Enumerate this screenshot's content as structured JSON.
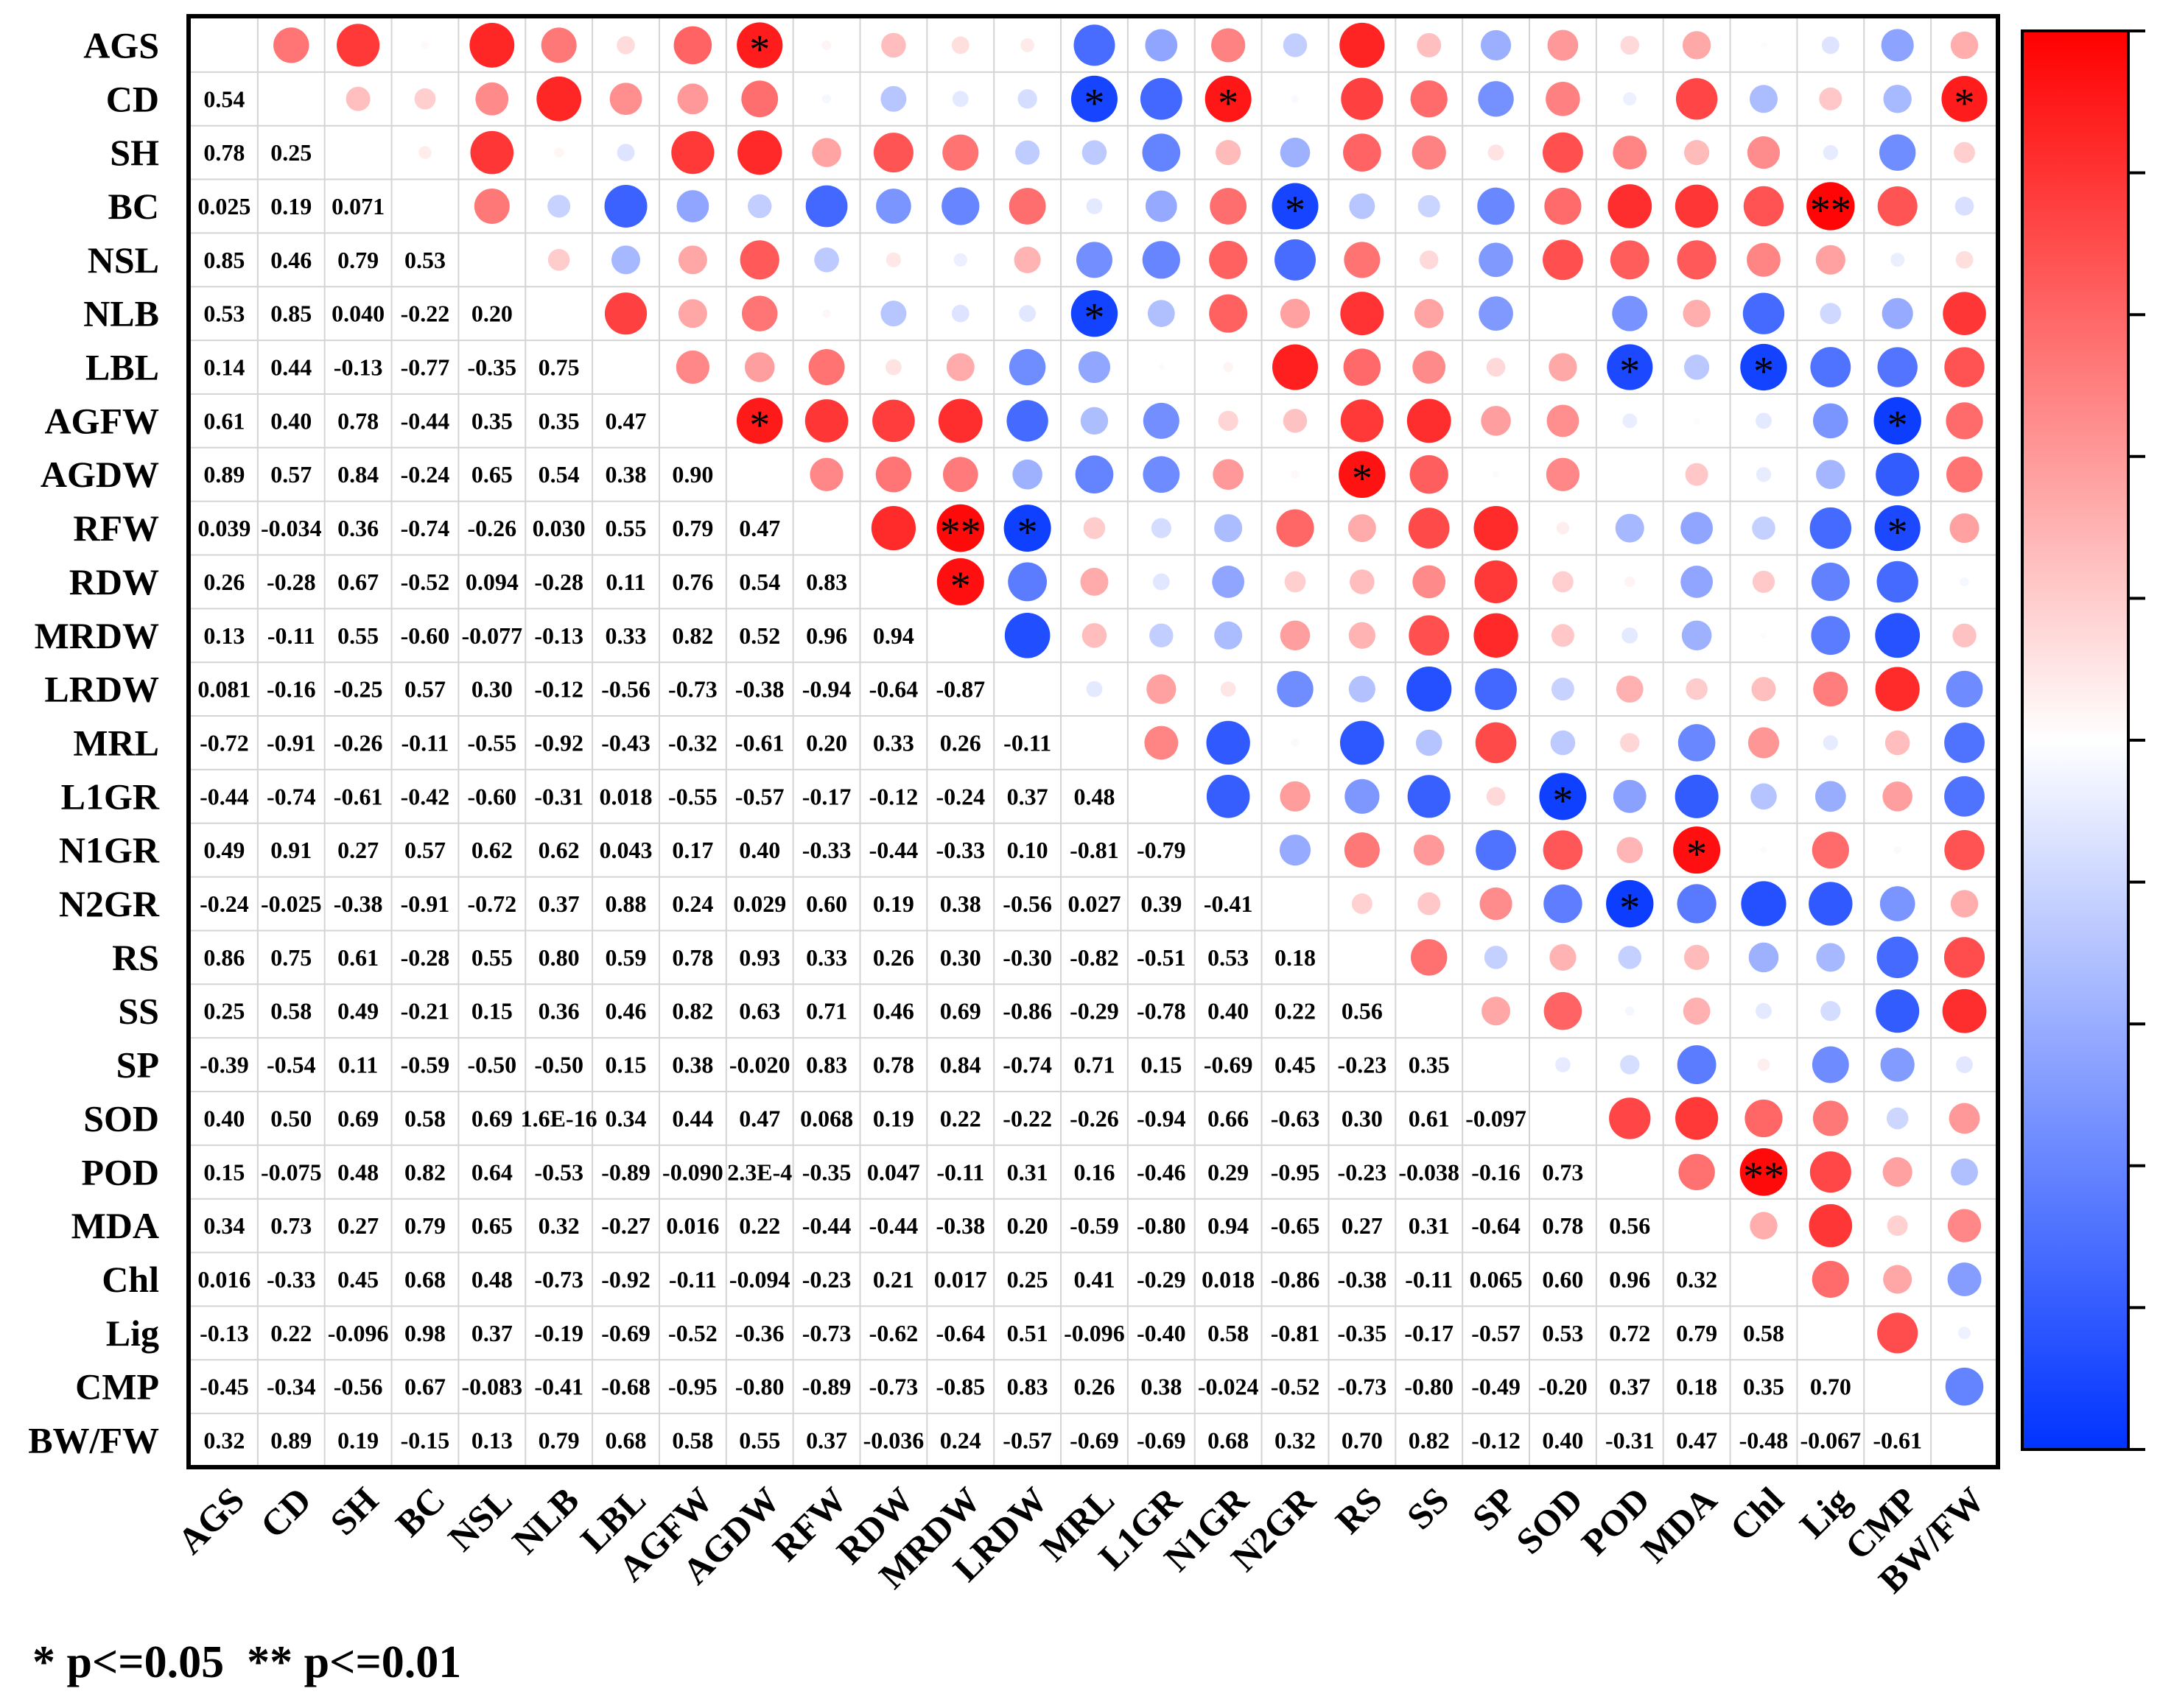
{
  "chart_data": {
    "type": "heatmap",
    "subtype": "correlation-matrix",
    "labels": [
      "AGS",
      "CD",
      "SH",
      "BC",
      "NSL",
      "NLB",
      "LBL",
      "AGFW",
      "AGDW",
      "RFW",
      "RDW",
      "MRDW",
      "LRDW",
      "MRL",
      "L1GR",
      "N1GR",
      "N2GR",
      "RS",
      "SS",
      "SP",
      "SOD",
      "POD",
      "MDA",
      "Chl",
      "Lig",
      "CMP",
      "BW/FW"
    ],
    "lower_values_text": [
      [],
      [
        "0.54"
      ],
      [
        "0.78",
        "0.25"
      ],
      [
        "0.025",
        "0.19",
        "0.071"
      ],
      [
        "0.85",
        "0.46",
        "0.79",
        "0.53"
      ],
      [
        "0.53",
        "0.85",
        "0.040",
        "-0.22",
        "0.20"
      ],
      [
        "0.14",
        "0.44",
        "-0.13",
        "-0.77",
        "-0.35",
        "0.75"
      ],
      [
        "0.61",
        "0.40",
        "0.78",
        "-0.44",
        "0.35",
        "0.35",
        "0.47"
      ],
      [
        "0.89",
        "0.57",
        "0.84",
        "-0.24",
        "0.65",
        "0.54",
        "0.38",
        "0.90"
      ],
      [
        "0.039",
        "-0.034",
        "0.36",
        "-0.74",
        "-0.26",
        "0.030",
        "0.55",
        "0.79",
        "0.47"
      ],
      [
        "0.26",
        "-0.28",
        "0.67",
        "-0.52",
        "0.094",
        "-0.28",
        "0.11",
        "0.76",
        "0.54",
        "0.83"
      ],
      [
        "0.13",
        "-0.11",
        "0.55",
        "-0.60",
        "-0.077",
        "-0.13",
        "0.33",
        "0.82",
        "0.52",
        "0.96",
        "0.94"
      ],
      [
        "0.081",
        "-0.16",
        "-0.25",
        "0.57",
        "0.30",
        "-0.12",
        "-0.56",
        "-0.73",
        "-0.38",
        "-0.94",
        "-0.64",
        "-0.87"
      ],
      [
        "-0.72",
        "-0.91",
        "-0.26",
        "-0.11",
        "-0.55",
        "-0.92",
        "-0.43",
        "-0.32",
        "-0.61",
        "0.20",
        "0.33",
        "0.26",
        "-0.11"
      ],
      [
        "-0.44",
        "-0.74",
        "-0.61",
        "-0.42",
        "-0.60",
        "-0.31",
        "0.018",
        "-0.55",
        "-0.57",
        "-0.17",
        "-0.12",
        "-0.24",
        "0.37",
        "0.48"
      ],
      [
        "0.49",
        "0.91",
        "0.27",
        "0.57",
        "0.62",
        "0.62",
        "0.043",
        "0.17",
        "0.40",
        "-0.33",
        "-0.44",
        "-0.33",
        "0.10",
        "-0.81",
        "-0.79"
      ],
      [
        "-0.24",
        "-0.025",
        "-0.38",
        "-0.91",
        "-0.72",
        "0.37",
        "0.88",
        "0.24",
        "0.029",
        "0.60",
        "0.19",
        "0.38",
        "-0.56",
        "0.027",
        "0.39",
        "-0.41"
      ],
      [
        "0.86",
        "0.75",
        "0.61",
        "-0.28",
        "0.55",
        "0.80",
        "0.59",
        "0.78",
        "0.93",
        "0.33",
        "0.26",
        "0.30",
        "-0.30",
        "-0.82",
        "-0.51",
        "0.53",
        "0.18"
      ],
      [
        "0.25",
        "0.58",
        "0.49",
        "-0.21",
        "0.15",
        "0.36",
        "0.46",
        "0.82",
        "0.63",
        "0.71",
        "0.46",
        "0.69",
        "-0.86",
        "-0.29",
        "-0.78",
        "0.40",
        "0.22",
        "0.56"
      ],
      [
        "-0.39",
        "-0.54",
        "0.11",
        "-0.59",
        "-0.50",
        "-0.50",
        "0.15",
        "0.38",
        "-0.020",
        "0.83",
        "0.78",
        "0.84",
        "-0.74",
        "0.71",
        "0.15",
        "-0.69",
        "0.45",
        "-0.23",
        "0.35"
      ],
      [
        "0.40",
        "0.50",
        "0.69",
        "0.58",
        "0.69",
        "1.6E-16",
        "0.34",
        "0.44",
        "0.47",
        "0.068",
        "0.19",
        "0.22",
        "-0.22",
        "-0.26",
        "-0.94",
        "0.66",
        "-0.63",
        "0.30",
        "0.61",
        "-0.097"
      ],
      [
        "0.15",
        "-0.075",
        "0.48",
        "0.82",
        "0.64",
        "-0.53",
        "-0.89",
        "-0.090",
        "2.3E-4",
        "-0.35",
        "0.047",
        "-0.11",
        "0.31",
        "0.16",
        "-0.46",
        "0.29",
        "-0.95",
        "-0.23",
        "-0.038",
        "-0.16",
        "0.73"
      ],
      [
        "0.34",
        "0.73",
        "0.27",
        "0.79",
        "0.65",
        "0.32",
        "-0.27",
        "0.016",
        "0.22",
        "-0.44",
        "-0.44",
        "-0.38",
        "0.20",
        "-0.59",
        "-0.80",
        "0.94",
        "-0.65",
        "0.27",
        "0.31",
        "-0.64",
        "0.78",
        "0.56"
      ],
      [
        "0.016",
        "-0.33",
        "0.45",
        "0.68",
        "0.48",
        "-0.73",
        "-0.92",
        "-0.11",
        "-0.094",
        "-0.23",
        "0.21",
        "0.017",
        "0.25",
        "0.41",
        "-0.29",
        "0.018",
        "-0.86",
        "-0.38",
        "-0.11",
        "0.065",
        "0.60",
        "0.96",
        "0.32"
      ],
      [
        "-0.13",
        "0.22",
        "-0.096",
        "0.98",
        "0.37",
        "-0.19",
        "-0.69",
        "-0.52",
        "-0.36",
        "-0.73",
        "-0.62",
        "-0.64",
        "0.51",
        "-0.096",
        "-0.40",
        "0.58",
        "-0.81",
        "-0.35",
        "-0.17",
        "-0.57",
        "0.53",
        "0.72",
        "0.79",
        "0.58"
      ],
      [
        "-0.45",
        "-0.34",
        "-0.56",
        "0.67",
        "-0.083",
        "-0.41",
        "-0.68",
        "-0.95",
        "-0.80",
        "-0.89",
        "-0.73",
        "-0.85",
        "0.83",
        "0.26",
        "0.38",
        "-0.024",
        "-0.52",
        "-0.73",
        "-0.80",
        "-0.49",
        "-0.20",
        "0.37",
        "0.18",
        "0.35",
        "0.70"
      ],
      [
        "0.32",
        "0.89",
        "0.19",
        "-0.15",
        "0.13",
        "0.79",
        "0.68",
        "0.58",
        "0.55",
        "0.37",
        "-0.036",
        "0.24",
        "-0.57",
        "-0.69",
        "-0.69",
        "0.68",
        "0.32",
        "0.70",
        "0.82",
        "-0.12",
        "0.40",
        "-0.31",
        "0.47",
        "-0.48",
        "-0.067",
        "-0.61"
      ]
    ],
    "significance": {
      "AGS|AGDW": "*",
      "CD|MRL": "*",
      "CD|N1GR": "*",
      "CD|BW/FW": "*",
      "BC|N2GR": "*",
      "BC|Lig": "**",
      "NLB|MRL": "*",
      "LBL|POD": "*",
      "LBL|Chl": "*",
      "AGFW|AGDW": "*",
      "AGFW|CMP": "*",
      "AGDW|RS": "*",
      "RFW|MRDW": "**",
      "RFW|LRDW": "*",
      "RFW|CMP": "*",
      "RDW|MRDW": "*",
      "L1GR|SOD": "*",
      "N1GR|MDA": "*",
      "N2GR|POD": "*",
      "POD|Chl": "**"
    },
    "color_scale": {
      "min": -1,
      "max": 1,
      "negative": "#0033ff",
      "neutral": "#ffffff",
      "positive": "#ff0000"
    },
    "legend_note": "* p<=0.05  ** p<=0.01"
  }
}
